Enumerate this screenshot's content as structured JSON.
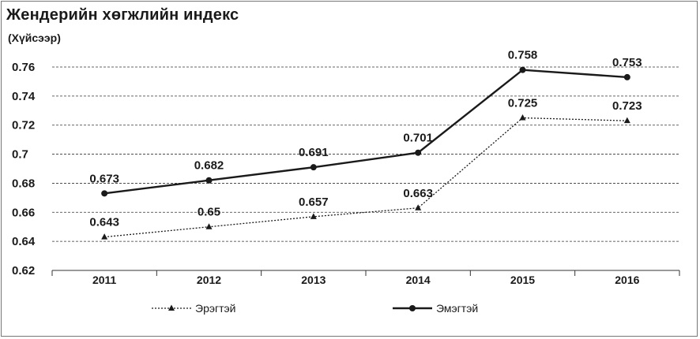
{
  "chart_data": {
    "type": "line",
    "title": "Жендерийн хөгжлийн индекс",
    "subtitle": "(Хүйсээр)",
    "x": [
      "2011",
      "2012",
      "2013",
      "2014",
      "2015",
      "2016"
    ],
    "ylim": [
      0.62,
      0.76
    ],
    "yticks": [
      "0.62",
      "0.64",
      "0.66",
      "0.68",
      "0.7",
      "0.72",
      "0.74",
      "0.76"
    ],
    "ytick_values": [
      0.62,
      0.64,
      0.66,
      0.68,
      0.7,
      0.72,
      0.74,
      0.76
    ],
    "grid": true,
    "legend_position": "bottom",
    "series": [
      {
        "name": "Эрэгтэй",
        "values": [
          0.643,
          0.65,
          0.657,
          0.663,
          0.725,
          0.723
        ],
        "labels": [
          "0.643",
          "0.65",
          "0.657",
          "0.663",
          "0.725",
          "0.723"
        ],
        "style": "dotted",
        "marker": "triangle",
        "color": "#1a1a1a"
      },
      {
        "name": "Эмэгтэй",
        "values": [
          0.673,
          0.682,
          0.691,
          0.701,
          0.758,
          0.753
        ],
        "labels": [
          "0.673",
          "0.682",
          "0.691",
          "0.701",
          "0.758",
          "0.753"
        ],
        "style": "solid",
        "marker": "circle",
        "color": "#1a1a1a"
      }
    ]
  }
}
